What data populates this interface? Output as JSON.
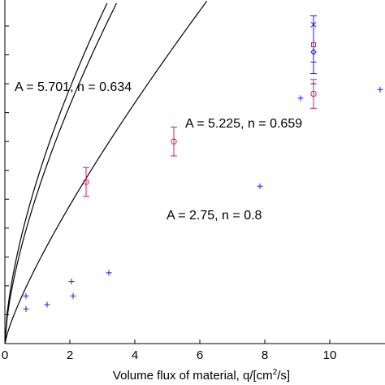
{
  "chart_data": {
    "type": "scatter",
    "title": "",
    "xlabel": "Volume flux of material, q/[cm",
    "xlabel_sup": "2",
    "xlabel_end": "/s]",
    "ylabel": "",
    "xlim": [
      0,
      11.7
    ],
    "ylim": [
      0,
      11.9
    ],
    "xticks": [
      0,
      2,
      4,
      6,
      8,
      10
    ],
    "xtick_labels": [
      "0",
      "2",
      "4",
      "6",
      "8",
      "10"
    ],
    "grid": false,
    "curves": [
      {
        "A": 5.701,
        "n": 0.634,
        "label": "A = 5.701, n = 0.634",
        "color": "#000000"
      },
      {
        "A": 5.225,
        "n": 0.659,
        "label": "A = 5.225, n = 0.659",
        "color": "#000000"
      },
      {
        "A": 2.75,
        "n": 0.8,
        "label": "A = 2.75, n = 0.8",
        "color": "#000000"
      }
    ],
    "series": [
      {
        "marker": "plus",
        "color": "#1a1aff",
        "points": [
          [
            0.65,
            1.65
          ],
          [
            0.65,
            1.2
          ],
          [
            1.3,
            1.35
          ],
          [
            2.05,
            2.15
          ],
          [
            2.1,
            1.65
          ],
          [
            3.2,
            2.45
          ],
          [
            7.85,
            5.45
          ],
          [
            9.1,
            8.5
          ],
          [
            9.5,
            9.75
          ],
          [
            9.5,
            9.0
          ],
          [
            11.55,
            8.8
          ]
        ]
      },
      {
        "marker": "x",
        "color": "#1a1aff",
        "points": [
          [
            9.5,
            11.05
          ]
        ]
      },
      {
        "marker": "diamond",
        "color": "#1a1aff",
        "points": [
          [
            9.5,
            10.1
          ]
        ]
      },
      {
        "marker": "square",
        "color": "#e0207a",
        "points": [
          [
            9.5,
            10.35
          ]
        ]
      },
      {
        "marker": "circle",
        "color": "#d02060",
        "errorbars": true,
        "points": [
          {
            "x": 2.5,
            "y": 5.6,
            "err": 0.5
          },
          {
            "x": 5.2,
            "y": 7.0,
            "err": 0.5
          },
          {
            "x": 9.5,
            "y": 8.65,
            "err": 0.5
          }
        ]
      },
      {
        "marker": "errorbar",
        "color": "#1a1aff",
        "errorbars": true,
        "points": [
          {
            "x": 9.5,
            "y": 10.35,
            "err": 1.0
          }
        ]
      }
    ]
  }
}
